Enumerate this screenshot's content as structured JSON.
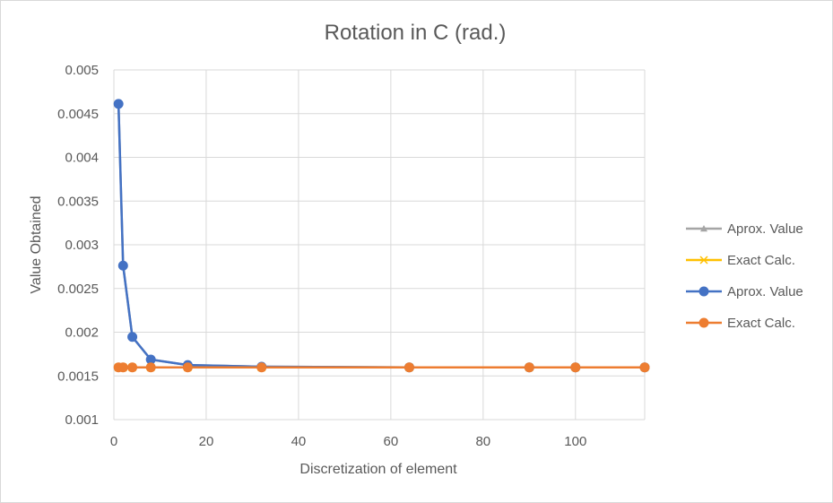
{
  "chart_data": {
    "type": "scatter",
    "title": "Rotation in C (rad.)",
    "xlabel": "Discretization of element",
    "ylabel": "Value Obtained",
    "xlim": [
      0,
      115
    ],
    "ylim": [
      0.001,
      0.005
    ],
    "xticks": [
      0,
      20,
      40,
      60,
      80,
      100
    ],
    "yticks": [
      0.001,
      0.0015,
      0.002,
      0.0025,
      0.003,
      0.0035,
      0.004,
      0.0045,
      0.005
    ],
    "ytick_labels": [
      "0.001",
      "0.0015",
      "0.002",
      "0.0025",
      "0.003",
      "0.0035",
      "0.004",
      "0.0045",
      "0.005"
    ],
    "grid": true,
    "legend_position": "right",
    "series": [
      {
        "name": "Aprox. Value",
        "color": "#a5a5a5",
        "marker": "triangle",
        "x": [
          1,
          2,
          4,
          8,
          16,
          32,
          64,
          90,
          100,
          115
        ],
        "y": [
          0.004612,
          0.002762,
          0.001946,
          0.001687,
          0.001624,
          0.001605,
          0.001598,
          0.001597,
          0.001597,
          0.001597
        ]
      },
      {
        "name": "Exact Calc.",
        "color": "#ffc000",
        "marker": "x",
        "x": [
          1,
          2,
          4,
          8,
          16,
          32,
          64,
          90,
          100,
          115
        ],
        "y": [
          0.001597,
          0.001597,
          0.001597,
          0.001597,
          0.001597,
          0.001597,
          0.001597,
          0.001597,
          0.001597,
          0.001597
        ]
      },
      {
        "name": "Aprox. Value",
        "color": "#4472c4",
        "marker": "circle",
        "x": [
          1,
          2,
          4,
          8,
          16,
          32,
          64,
          90,
          100,
          115
        ],
        "y": [
          0.004612,
          0.002762,
          0.001946,
          0.001687,
          0.001624,
          0.001605,
          0.001598,
          0.001597,
          0.001597,
          0.001597
        ]
      },
      {
        "name": "Exact Calc.",
        "color": "#ed7d31",
        "marker": "circle",
        "x": [
          1,
          2,
          4,
          8,
          16,
          32,
          64,
          90,
          100,
          115
        ],
        "y": [
          0.001597,
          0.001597,
          0.001597,
          0.001597,
          0.001597,
          0.001597,
          0.001597,
          0.001597,
          0.001597,
          0.001597
        ]
      }
    ]
  }
}
